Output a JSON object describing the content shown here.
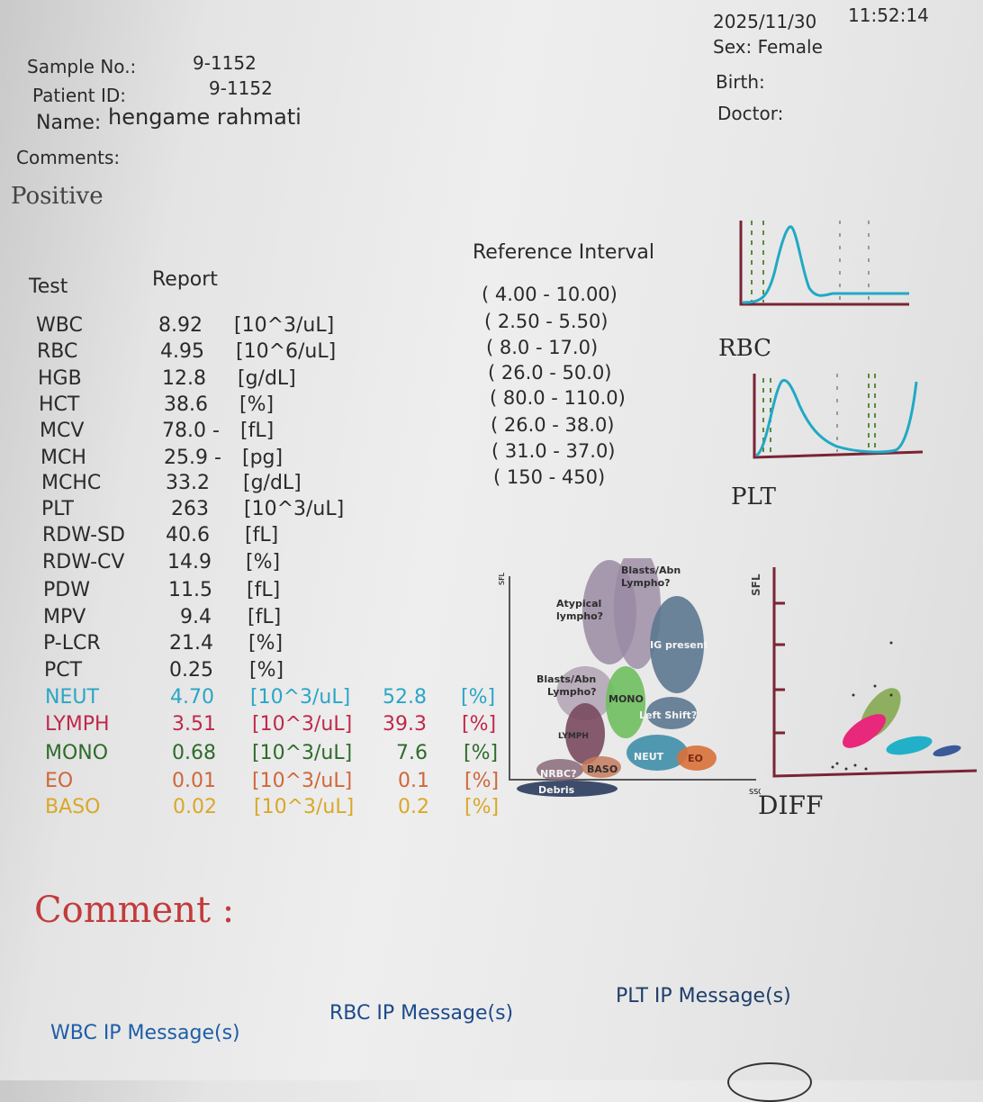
{
  "header": {
    "date": "2025/11/30",
    "time": "11:52:14",
    "sample_label": "Sample No.:",
    "sample_value": "9-1152",
    "patient_label": "Patient ID:",
    "patient_value": "9-1152",
    "name_label": "Name:",
    "name_value": "hengame rahmati",
    "sex": "Sex: Female",
    "birth": "Birth:",
    "doctor": "Doctor:",
    "comments_label": "Comments:",
    "comments_value": "Positive"
  },
  "table_headers": {
    "test": "Test",
    "report": "Report",
    "reference": "Reference Interval"
  },
  "colors": {
    "text": "#2a2a2a",
    "neut": "#2aa6c6",
    "lymph": "#c0284a",
    "mono": "#2e6b2a",
    "eo": "#d0663a",
    "baso": "#d9a828",
    "comment": "#c23b3b",
    "wbc_msg": "#1d5ea8",
    "histogram": "#21a9c4",
    "axis": "#7a2434"
  },
  "results": [
    {
      "test": "WBC",
      "value": "8.92",
      "unit": "[10^3/uL]"
    },
    {
      "test": "RBC",
      "value": "4.95",
      "unit": "[10^6/uL]"
    },
    {
      "test": "HGB",
      "value": "12.8",
      "unit": "[g/dL]"
    },
    {
      "test": "HCT",
      "value": "38.6",
      "unit": "[%]"
    },
    {
      "test": "MCV",
      "value": "78.0 -",
      "unit": "[fL]"
    },
    {
      "test": "MCH",
      "value": "25.9 -",
      "unit": "[pg]"
    },
    {
      "test": "MCHC",
      "value": "33.2",
      "unit": "[g/dL]"
    },
    {
      "test": "PLT",
      "value": "263",
      "unit": "[10^3/uL]"
    },
    {
      "test": "RDW-SD",
      "value": "40.6",
      "unit": "[fL]"
    },
    {
      "test": "RDW-CV",
      "value": "14.9",
      "unit": "[%]"
    },
    {
      "test": "PDW",
      "value": "11.5",
      "unit": "[fL]"
    },
    {
      "test": "MPV",
      "value": "9.4",
      "unit": "[fL]"
    },
    {
      "test": "P-LCR",
      "value": "21.4",
      "unit": "[%]"
    },
    {
      "test": "PCT",
      "value": "0.25",
      "unit": "[%]"
    },
    {
      "test": "NEUT",
      "value": "4.70",
      "unit": "[10^3/uL]",
      "pct": "52.8",
      "pct_unit": "[%]",
      "color": "neut"
    },
    {
      "test": "LYMPH",
      "value": "3.51",
      "unit": "[10^3/uL]",
      "pct": "39.3",
      "pct_unit": "[%]",
      "color": "lymph"
    },
    {
      "test": "MONO",
      "value": "0.68",
      "unit": "[10^3/uL]",
      "pct": "7.6",
      "pct_unit": "[%]",
      "color": "mono"
    },
    {
      "test": "EO",
      "value": "0.01",
      "unit": "[10^3/uL]",
      "pct": "0.1",
      "pct_unit": "[%]",
      "color": "eo"
    },
    {
      "test": "BASO",
      "value": "0.02",
      "unit": "[10^3/uL]",
      "pct": "0.2",
      "pct_unit": "[%]",
      "color": "baso"
    }
  ],
  "reference_intervals": [
    "( 4.00 -  10.00)",
    "( 2.50 -   5.50)",
    "(  8.0 -   17.0)",
    "( 26.0 -   50.0)",
    "( 80.0 -  110.0)",
    "( 26.0 -   38.0)",
    "( 31.0 -   37.0)",
    "(  150 -    450)"
  ],
  "graphs": {
    "rbc_label": "RBC",
    "plt_label": "PLT",
    "diff_label": "DIFF",
    "axis_sfl": "SFL",
    "axis_ssc": "SSC"
  },
  "scatter_legend": {
    "debris": "Debris",
    "nrbc": "NRBC?",
    "baso": "BASO",
    "neut": "NEUT",
    "eo": "EO",
    "lymph": "LYMPH",
    "mono": "MONO",
    "left_shift": "Left Shift?",
    "ig_present": "IG present",
    "blasts_abn_lympho_top_1": "Blasts/Abn",
    "blasts_abn_lympho_top_2": "Lympho?",
    "atypical_1": "Atypical",
    "atypical_2": "lympho?",
    "blasts_abn_lympho_mid_1": "Blasts/Abn",
    "blasts_abn_lympho_mid_2": "Lympho?"
  },
  "footer": {
    "comment_label": "Comment :",
    "wbc_msg": "WBC IP Message(s)",
    "rbc_msg": "RBC IP Message(s)",
    "plt_msg": "PLT IP Message(s)"
  }
}
